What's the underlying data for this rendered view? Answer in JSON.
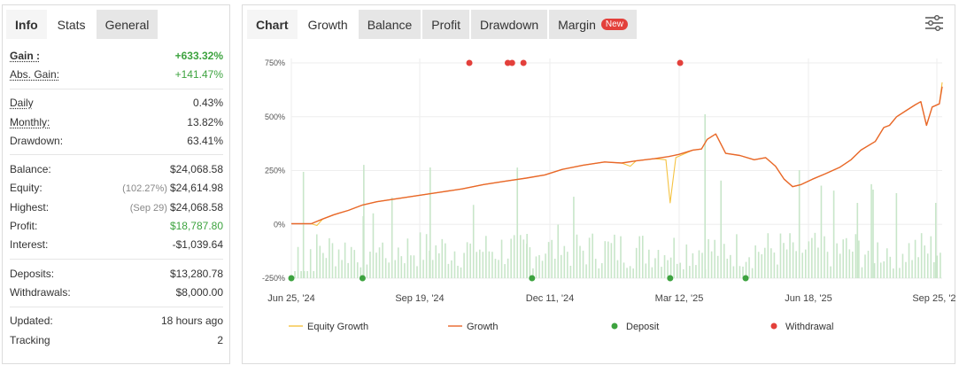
{
  "stats_tabs": [
    "Info",
    "Stats",
    "General"
  ],
  "stats": {
    "gain_label": "Gain :",
    "gain_value": "+633.32%",
    "abs_gain_label": "Abs. Gain:",
    "abs_gain_value": "+141.47%",
    "daily_label": "Daily",
    "daily_value": "0.43%",
    "monthly_label": "Monthly:",
    "monthly_value": "13.82%",
    "drawdown_label": "Drawdown:",
    "drawdown_value": "63.41%",
    "balance_label": "Balance:",
    "balance_value": "$24,068.58",
    "equity_label": "Equity:",
    "equity_pct": "(102.27%)",
    "equity_value": "$24,614.98",
    "highest_label": "Highest:",
    "highest_date": "(Sep 29)",
    "highest_value": "$24,068.58",
    "profit_label": "Profit:",
    "profit_value": "$18,787.80",
    "interest_label": "Interest:",
    "interest_value": "-$1,039.64",
    "deposits_label": "Deposits:",
    "deposits_value": "$13,280.78",
    "withdrawals_label": "Withdrawals:",
    "withdrawals_value": "$8,000.00",
    "updated_label": "Updated:",
    "updated_value": "18 hours ago",
    "tracking_label": "Tracking",
    "tracking_value": "2"
  },
  "chart_tabs": {
    "chart": "Chart",
    "growth": "Growth",
    "balance": "Balance",
    "profit": "Profit",
    "drawdown": "Drawdown",
    "margin": "Margin",
    "margin_badge": "New"
  },
  "icons": {
    "settings": "sliders-icon"
  },
  "colors": {
    "equity": "#f5c342",
    "growth": "#e8672a",
    "deposit": "#3da33f",
    "withdrawal": "#e3403b",
    "bars": "#c8e6c9"
  },
  "chart_data": {
    "type": "line",
    "title": "",
    "xlabel": "",
    "ylabel": "",
    "x_tick_labels": [
      "Jun 25, '24",
      "Sep 19, '24",
      "Dec 11, '24",
      "Mar 12, '25",
      "Jun 18, '25",
      "Sep 25, '25"
    ],
    "y_tick_labels": [
      "750%",
      "500%",
      "250%",
      "0%",
      "-250%"
    ],
    "y_ticks": [
      750,
      500,
      250,
      0,
      -250
    ],
    "ylim": [
      -250,
      750
    ],
    "x_range_days": [
      0,
      457
    ],
    "legend": [
      "Equity Growth",
      "Growth",
      "Deposit",
      "Withdrawal"
    ],
    "legend_position": "bottom",
    "grid": true,
    "series": [
      {
        "name": "Growth",
        "points": [
          [
            0,
            3
          ],
          [
            14,
            3
          ],
          [
            22,
            25
          ],
          [
            30,
            45
          ],
          [
            40,
            65
          ],
          [
            50,
            90
          ],
          [
            60,
            105
          ],
          [
            75,
            120
          ],
          [
            90,
            135
          ],
          [
            105,
            150
          ],
          [
            120,
            165
          ],
          [
            135,
            185
          ],
          [
            150,
            200
          ],
          [
            165,
            215
          ],
          [
            178,
            230
          ],
          [
            190,
            255
          ],
          [
            205,
            275
          ],
          [
            220,
            290
          ],
          [
            232,
            285
          ],
          [
            242,
            295
          ],
          [
            255,
            305
          ],
          [
            265,
            315
          ],
          [
            272,
            325
          ],
          [
            282,
            345
          ],
          [
            288,
            350
          ],
          [
            292,
            395
          ],
          [
            298,
            420
          ],
          [
            305,
            330
          ],
          [
            315,
            320
          ],
          [
            325,
            300
          ],
          [
            333,
            310
          ],
          [
            340,
            270
          ],
          [
            346,
            210
          ],
          [
            352,
            175
          ],
          [
            358,
            185
          ],
          [
            366,
            210
          ],
          [
            375,
            235
          ],
          [
            385,
            265
          ],
          [
            393,
            300
          ],
          [
            400,
            345
          ],
          [
            410,
            385
          ],
          [
            416,
            450
          ],
          [
            420,
            460
          ],
          [
            425,
            500
          ],
          [
            432,
            530
          ],
          [
            438,
            555
          ],
          [
            442,
            570
          ],
          [
            446,
            460
          ],
          [
            450,
            545
          ],
          [
            455,
            560
          ],
          [
            457,
            640
          ]
        ]
      },
      {
        "name": "Equity Growth",
        "points": [
          [
            0,
            3
          ],
          [
            14,
            3
          ],
          [
            18,
            -5
          ],
          [
            22,
            25
          ],
          [
            30,
            45
          ],
          [
            40,
            65
          ],
          [
            50,
            90
          ],
          [
            60,
            105
          ],
          [
            75,
            120
          ],
          [
            90,
            135
          ],
          [
            105,
            150
          ],
          [
            120,
            165
          ],
          [
            135,
            185
          ],
          [
            150,
            200
          ],
          [
            165,
            215
          ],
          [
            178,
            230
          ],
          [
            190,
            255
          ],
          [
            205,
            275
          ],
          [
            220,
            290
          ],
          [
            232,
            285
          ],
          [
            238,
            270
          ],
          [
            242,
            295
          ],
          [
            255,
            305
          ],
          [
            263,
            300
          ],
          [
            266,
            100
          ],
          [
            270,
            310
          ],
          [
            282,
            345
          ],
          [
            288,
            350
          ],
          [
            292,
            395
          ],
          [
            298,
            420
          ],
          [
            305,
            330
          ],
          [
            315,
            320
          ],
          [
            325,
            300
          ],
          [
            333,
            310
          ],
          [
            340,
            270
          ],
          [
            346,
            210
          ],
          [
            352,
            175
          ],
          [
            358,
            185
          ],
          [
            366,
            210
          ],
          [
            375,
            235
          ],
          [
            385,
            265
          ],
          [
            393,
            300
          ],
          [
            400,
            345
          ],
          [
            410,
            385
          ],
          [
            416,
            450
          ],
          [
            420,
            460
          ],
          [
            425,
            500
          ],
          [
            432,
            530
          ],
          [
            438,
            555
          ],
          [
            442,
            570
          ],
          [
            446,
            460
          ],
          [
            450,
            545
          ],
          [
            455,
            560
          ],
          [
            457,
            660
          ]
        ]
      }
    ],
    "deposits_days": [
      0,
      50,
      169,
      266,
      319
    ],
    "withdrawals_days": [
      125,
      152,
      155,
      163,
      273
    ]
  }
}
